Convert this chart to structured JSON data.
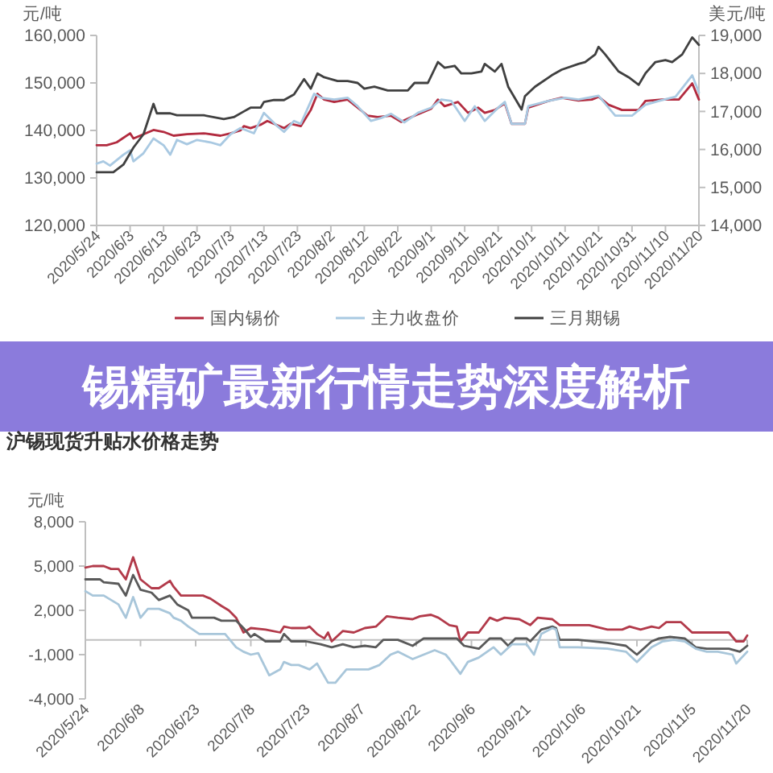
{
  "chart_data": [
    {
      "type": "line",
      "ylabel": "元/吨",
      "y2label": "美元/吨",
      "legend": "bottom",
      "xlim": [
        "2020-05-24",
        "2020-11-20"
      ],
      "xticks": [
        {
          "value": "2020-05-24",
          "label": "2020/5/24"
        },
        {
          "value": "2020-06-03",
          "label": "2020/6/3"
        },
        {
          "value": "2020-06-13",
          "label": "2020/6/13"
        },
        {
          "value": "2020-06-23",
          "label": "2020/6/23"
        },
        {
          "value": "2020-07-03",
          "label": "2020/7/3"
        },
        {
          "value": "2020-07-13",
          "label": "2020/7/13"
        },
        {
          "value": "2020-07-23",
          "label": "2020/7/23"
        },
        {
          "value": "2020-08-02",
          "label": "2020/8/2"
        },
        {
          "value": "2020-08-12",
          "label": "2020/8/12"
        },
        {
          "value": "2020-08-22",
          "label": "2020/8/22"
        },
        {
          "value": "2020-09-01",
          "label": "2020/9/1"
        },
        {
          "value": "2020-09-11",
          "label": "2020/9/11"
        },
        {
          "value": "2020-09-21",
          "label": "2020/9/21"
        },
        {
          "value": "2020-10-01",
          "label": "2020/10/1"
        },
        {
          "value": "2020-10-11",
          "label": "2020/10/11"
        },
        {
          "value": "2020-10-21",
          "label": "2020/10/21"
        },
        {
          "value": "2020-10-31",
          "label": "2020/10/31"
        },
        {
          "value": "2020-11-10",
          "label": "2020/11/10"
        },
        {
          "value": "2020-11-20",
          "label": "2020/11/20"
        }
      ],
      "ylim": [
        120000,
        160000
      ],
      "yticks": [
        {
          "value": 120000,
          "label": "120,000"
        },
        {
          "value": 130000,
          "label": "130,000"
        },
        {
          "value": 140000,
          "label": "140,000"
        },
        {
          "value": 150000,
          "label": "150,000"
        },
        {
          "value": 160000,
          "label": "160,000"
        }
      ],
      "y2lim": [
        14000,
        19000
      ],
      "y2ticks": [
        {
          "value": 14000,
          "label": "14,000"
        },
        {
          "value": 15000,
          "label": "15,000"
        },
        {
          "value": 16000,
          "label": "16,000"
        },
        {
          "value": 17000,
          "label": "17,000"
        },
        {
          "value": 18000,
          "label": "18,000"
        },
        {
          "value": 19000,
          "label": "19,000"
        }
      ],
      "series": [
        {
          "name": "国内锡价",
          "color": "#b22b3f",
          "x": [
            "2020-05-24",
            "2020-05-27",
            "2020-05-30",
            "2020-06-03",
            "2020-06-04",
            "2020-06-07",
            "2020-06-10",
            "2020-06-13",
            "2020-06-16",
            "2020-06-20",
            "2020-06-25",
            "2020-06-30",
            "2020-07-03",
            "2020-07-06",
            "2020-07-07",
            "2020-07-09",
            "2020-07-12",
            "2020-07-14",
            "2020-07-19",
            "2020-07-21",
            "2020-07-24",
            "2020-07-27",
            "2020-07-29",
            "2020-07-31",
            "2020-08-03",
            "2020-08-07",
            "2020-08-10",
            "2020-08-13",
            "2020-08-16",
            "2020-08-20",
            "2020-08-23",
            "2020-08-26",
            "2020-08-29",
            "2020-09-01",
            "2020-09-03",
            "2020-09-05",
            "2020-09-09",
            "2020-09-12",
            "2020-09-15",
            "2020-09-17",
            "2020-09-20",
            "2020-09-23",
            "2020-09-25",
            "2020-09-29",
            "2020-09-30",
            "2020-10-06",
            "2020-10-10",
            "2020-10-15",
            "2020-10-19",
            "2020-10-21",
            "2020-10-24",
            "2020-10-28",
            "2020-11-02",
            "2020-11-04",
            "2020-11-09",
            "2020-11-14",
            "2020-11-16",
            "2020-11-18",
            "2020-11-20"
          ],
          "values": [
            136900,
            136900,
            137500,
            139400,
            138300,
            139200,
            140100,
            139700,
            138900,
            139200,
            139400,
            138900,
            139400,
            140000,
            140900,
            140500,
            141200,
            142000,
            140500,
            141400,
            140900,
            144300,
            147700,
            146500,
            146000,
            146500,
            144800,
            143100,
            142800,
            143100,
            141800,
            142800,
            143700,
            144600,
            146500,
            145100,
            146000,
            143700,
            144800,
            143700,
            144300,
            145700,
            141400,
            141400,
            144800,
            146200,
            146900,
            146300,
            146500,
            147100,
            145400,
            144300,
            144300,
            146200,
            146500,
            146500,
            148200,
            149900,
            146500
          ]
        },
        {
          "name": "主力收盘价",
          "color": "#a9c9e2",
          "x": [
            "2020-05-24",
            "2020-05-26",
            "2020-05-28",
            "2020-06-01",
            "2020-06-03",
            "2020-06-04",
            "2020-06-07",
            "2020-06-10",
            "2020-06-13",
            "2020-06-15",
            "2020-06-17",
            "2020-06-20",
            "2020-06-23",
            "2020-06-27",
            "2020-06-30",
            "2020-07-03",
            "2020-07-06",
            "2020-07-10",
            "2020-07-13",
            "2020-07-17",
            "2020-07-19",
            "2020-07-22",
            "2020-07-24",
            "2020-07-28",
            "2020-07-30",
            "2020-08-03",
            "2020-08-07",
            "2020-08-10",
            "2020-08-14",
            "2020-08-17",
            "2020-08-20",
            "2020-08-24",
            "2020-08-28",
            "2020-09-01",
            "2020-09-04",
            "2020-09-07",
            "2020-09-11",
            "2020-09-14",
            "2020-09-17",
            "2020-09-21",
            "2020-09-23",
            "2020-09-25",
            "2020-09-29",
            "2020-09-30",
            "2020-10-06",
            "2020-10-11",
            "2020-10-15",
            "2020-10-21",
            "2020-10-26",
            "2020-10-31",
            "2020-11-04",
            "2020-11-08",
            "2020-11-13",
            "2020-11-18",
            "2020-11-20"
          ],
          "values": [
            133000,
            133500,
            132600,
            134900,
            135800,
            133500,
            135200,
            138300,
            136900,
            134900,
            138000,
            137100,
            138000,
            137500,
            136900,
            139200,
            140500,
            139400,
            143700,
            140900,
            139700,
            142000,
            141400,
            147700,
            146900,
            146500,
            146900,
            145100,
            142000,
            142600,
            143500,
            141700,
            143700,
            144800,
            146500,
            146200,
            142000,
            145100,
            142000,
            144800,
            146000,
            141400,
            141400,
            145100,
            146200,
            146900,
            146500,
            147300,
            143100,
            143100,
            145400,
            146200,
            147100,
            151600,
            148000
          ]
        },
        {
          "name": "三月期锡",
          "color": "#404040",
          "axis": "y2",
          "x": [
            "2020-05-24",
            "2020-05-29",
            "2020-06-01",
            "2020-06-04",
            "2020-06-07",
            "2020-06-10",
            "2020-06-11",
            "2020-06-15",
            "2020-06-17",
            "2020-06-20",
            "2020-06-25",
            "2020-07-01",
            "2020-07-04",
            "2020-07-07",
            "2020-07-09",
            "2020-07-12",
            "2020-07-13",
            "2020-07-16",
            "2020-07-19",
            "2020-07-22",
            "2020-07-25",
            "2020-07-27",
            "2020-07-29",
            "2020-07-31",
            "2020-08-04",
            "2020-08-07",
            "2020-08-10",
            "2020-08-12",
            "2020-08-15",
            "2020-08-19",
            "2020-08-22",
            "2020-08-25",
            "2020-08-27",
            "2020-08-31",
            "2020-09-03",
            "2020-09-05",
            "2020-09-08",
            "2020-09-10",
            "2020-09-13",
            "2020-09-16",
            "2020-09-17",
            "2020-09-20",
            "2020-09-22",
            "2020-09-24",
            "2020-09-28",
            "2020-09-29",
            "2020-10-02",
            "2020-10-07",
            "2020-10-10",
            "2020-10-15",
            "2020-10-17",
            "2020-10-20",
            "2020-10-21",
            "2020-10-23",
            "2020-10-27",
            "2020-10-30",
            "2020-11-02",
            "2020-11-04",
            "2020-11-07",
            "2020-11-10",
            "2020-11-12",
            "2020-11-15",
            "2020-11-18",
            "2020-11-20"
          ],
          "values": [
            15400,
            15400,
            15600,
            16050,
            16400,
            17200,
            16950,
            16950,
            16900,
            16900,
            16900,
            16800,
            16850,
            17000,
            17100,
            17100,
            17250,
            17300,
            17300,
            17450,
            17850,
            17600,
            18000,
            17900,
            17800,
            17800,
            17750,
            17600,
            17650,
            17550,
            17550,
            17550,
            17750,
            17750,
            18300,
            18150,
            18200,
            18000,
            18000,
            18050,
            18250,
            18050,
            18250,
            17650,
            17050,
            17400,
            17650,
            17950,
            18100,
            18250,
            18300,
            18500,
            18700,
            18500,
            18050,
            17900,
            17700,
            18000,
            18300,
            18350,
            18300,
            18500,
            18950,
            18750
          ]
        }
      ]
    },
    {
      "type": "other",
      "title": "锡精矿最新行情走势深度解析"
    },
    {
      "type": "line",
      "title": "沪锡现货升贴水价格走势",
      "ylabel": "元/吨",
      "xlim": [
        "2020-05-24",
        "2020-11-20"
      ],
      "xticks": [
        {
          "value": "2020-05-24",
          "label": "2020/5/24"
        },
        {
          "value": "2020-06-08",
          "label": "2020/6/8"
        },
        {
          "value": "2020-06-23",
          "label": "2020/6/23"
        },
        {
          "value": "2020-07-08",
          "label": "2020/7/8"
        },
        {
          "value": "2020-07-23",
          "label": "2020/7/23"
        },
        {
          "value": "2020-08-07",
          "label": "2020/8/7"
        },
        {
          "value": "2020-08-22",
          "label": "2020/8/22"
        },
        {
          "value": "2020-09-06",
          "label": "2020/9/6"
        },
        {
          "value": "2020-09-21",
          "label": "2020/9/21"
        },
        {
          "value": "2020-10-06",
          "label": "2020/10/6"
        },
        {
          "value": "2020-10-21",
          "label": "2020/10/21"
        },
        {
          "value": "2020-11-05",
          "label": "2020/11/5"
        },
        {
          "value": "2020-11-20",
          "label": "2020/11/20"
        }
      ],
      "ylim": [
        -4000,
        8000
      ],
      "yticks": [
        {
          "value": -4000,
          "label": "-4,000"
        },
        {
          "value": -1000,
          "label": "-1,000"
        },
        {
          "value": 2000,
          "label": "2,000"
        },
        {
          "value": 5000,
          "label": "5,000"
        },
        {
          "value": 8000,
          "label": "8,000"
        }
      ],
      "series": [
        {
          "color": "#b23a4a",
          "x": [
            "2020-05-24",
            "2020-05-26",
            "2020-05-29",
            "2020-05-31",
            "2020-06-02",
            "2020-06-04",
            "2020-06-06",
            "2020-06-08",
            "2020-06-11",
            "2020-06-13",
            "2020-06-16",
            "2020-06-17",
            "2020-06-19",
            "2020-06-25",
            "2020-06-27",
            "2020-06-30",
            "2020-07-02",
            "2020-07-04",
            "2020-07-06",
            "2020-07-08",
            "2020-07-12",
            "2020-07-16",
            "2020-07-17",
            "2020-07-19",
            "2020-07-23",
            "2020-07-24",
            "2020-07-26",
            "2020-07-28",
            "2020-07-29",
            "2020-07-30",
            "2020-08-02",
            "2020-08-05",
            "2020-08-08",
            "2020-08-11",
            "2020-08-14",
            "2020-08-17",
            "2020-08-21",
            "2020-08-23",
            "2020-08-26",
            "2020-08-28",
            "2020-08-31",
            "2020-09-02",
            "2020-09-03",
            "2020-09-05",
            "2020-09-08",
            "2020-09-11",
            "2020-09-13",
            "2020-09-15",
            "2020-09-19",
            "2020-09-22",
            "2020-09-24",
            "2020-09-28",
            "2020-09-30",
            "2020-10-08",
            "2020-10-13",
            "2020-10-17",
            "2020-10-19",
            "2020-10-22",
            "2020-10-25",
            "2020-10-27",
            "2020-10-29",
            "2020-11-02",
            "2020-11-05",
            "2020-11-15",
            "2020-11-17",
            "2020-11-19",
            "2020-11-20"
          ],
          "values": [
            4900,
            5000,
            5000,
            4800,
            4800,
            4100,
            5600,
            4100,
            3500,
            3500,
            4000,
            3600,
            3000,
            3000,
            2800,
            2300,
            2000,
            1500,
            500,
            800,
            700,
            500,
            900,
            800,
            800,
            900,
            400,
            100,
            500,
            -100,
            600,
            500,
            800,
            900,
            1600,
            1500,
            1400,
            1600,
            1700,
            1500,
            1000,
            900,
            -100,
            500,
            500,
            1500,
            1300,
            1500,
            1400,
            1000,
            1500,
            1400,
            1000,
            1000,
            700,
            700,
            900,
            700,
            900,
            800,
            1200,
            1200,
            500,
            500,
            -100,
            -100,
            300
          ]
        },
        {
          "color": "#595959",
          "x": [
            "2020-05-24",
            "2020-05-28",
            "2020-05-29",
            "2020-06-02",
            "2020-06-04",
            "2020-06-06",
            "2020-06-08",
            "2020-06-11",
            "2020-06-13",
            "2020-06-16",
            "2020-06-18",
            "2020-06-21",
            "2020-06-22",
            "2020-06-28",
            "2020-06-30",
            "2020-07-04",
            "2020-07-06",
            "2020-07-08",
            "2020-07-09",
            "2020-07-12",
            "2020-07-16",
            "2020-07-17",
            "2020-07-19",
            "2020-07-23",
            "2020-07-27",
            "2020-07-30",
            "2020-08-02",
            "2020-08-05",
            "2020-08-08",
            "2020-08-11",
            "2020-08-13",
            "2020-08-17",
            "2020-08-21",
            "2020-08-24",
            "2020-08-28",
            "2020-09-02",
            "2020-09-04",
            "2020-09-08",
            "2020-09-11",
            "2020-09-14",
            "2020-09-16",
            "2020-09-18",
            "2020-09-21",
            "2020-09-22",
            "2020-09-25",
            "2020-09-28",
            "2020-09-29",
            "2020-09-30",
            "2020-10-05",
            "2020-10-13",
            "2020-10-18",
            "2020-10-21",
            "2020-10-25",
            "2020-10-27",
            "2020-10-30",
            "2020-11-03",
            "2020-11-06",
            "2020-11-09",
            "2020-11-12",
            "2020-11-15",
            "2020-11-18",
            "2020-11-20"
          ],
          "values": [
            4100,
            4100,
            3900,
            3800,
            3000,
            4400,
            3400,
            3200,
            2700,
            3000,
            2400,
            2000,
            1500,
            1500,
            1300,
            1300,
            800,
            200,
            400,
            -100,
            -100,
            400,
            -100,
            -100,
            -300,
            -500,
            -300,
            -500,
            -400,
            -500,
            0,
            0,
            -400,
            100,
            100,
            100,
            -400,
            -600,
            100,
            100,
            -400,
            100,
            100,
            -100,
            700,
            900,
            800,
            0,
            0,
            -200,
            -400,
            -1000,
            -100,
            100,
            200,
            100,
            -500,
            -600,
            -600,
            -600,
            -800,
            -400
          ]
        },
        {
          "color": "#a8c6da",
          "x": [
            "2020-05-24",
            "2020-05-26",
            "2020-05-29",
            "2020-05-31",
            "2020-06-02",
            "2020-06-04",
            "2020-06-06",
            "2020-06-08",
            "2020-06-10",
            "2020-06-13",
            "2020-06-16",
            "2020-06-17",
            "2020-06-19",
            "2020-06-21",
            "2020-06-24",
            "2020-07-01",
            "2020-07-04",
            "2020-07-06",
            "2020-07-08",
            "2020-07-10",
            "2020-07-13",
            "2020-07-16",
            "2020-07-17",
            "2020-07-19",
            "2020-07-21",
            "2020-07-24",
            "2020-07-26",
            "2020-07-29",
            "2020-07-31",
            "2020-08-03",
            "2020-08-09",
            "2020-08-12",
            "2020-08-15",
            "2020-08-17",
            "2020-08-21",
            "2020-08-24",
            "2020-08-27",
            "2020-08-30",
            "2020-08-31",
            "2020-09-03",
            "2020-09-05",
            "2020-09-08",
            "2020-09-12",
            "2020-09-14",
            "2020-09-17",
            "2020-09-21",
            "2020-09-23",
            "2020-09-25",
            "2020-09-28",
            "2020-09-29",
            "2020-09-30",
            "2020-10-05",
            "2020-10-13",
            "2020-10-18",
            "2020-10-21",
            "2020-10-25",
            "2020-10-28",
            "2020-10-31",
            "2020-11-03",
            "2020-11-06",
            "2020-11-09",
            "2020-11-12",
            "2020-11-16",
            "2020-11-17",
            "2020-11-20"
          ],
          "values": [
            3300,
            3000,
            3000,
            2700,
            2400,
            1500,
            2900,
            1500,
            2100,
            2100,
            1800,
            1500,
            1300,
            900,
            400,
            400,
            -500,
            -800,
            -1000,
            -900,
            -2400,
            -2000,
            -1500,
            -1700,
            -1700,
            -2000,
            -1600,
            -2900,
            -2900,
            -2000,
            -2000,
            -1700,
            -1000,
            -800,
            -1300,
            -1000,
            -700,
            -1000,
            -1300,
            -2300,
            -1500,
            -1200,
            -500,
            -1000,
            -300,
            -300,
            -1000,
            400,
            800,
            700,
            -500,
            -500,
            -600,
            -800,
            -1500,
            -500,
            -100,
            0,
            -100,
            -600,
            -800,
            -800,
            -1000,
            -1600,
            -800
          ]
        }
      ]
    }
  ]
}
